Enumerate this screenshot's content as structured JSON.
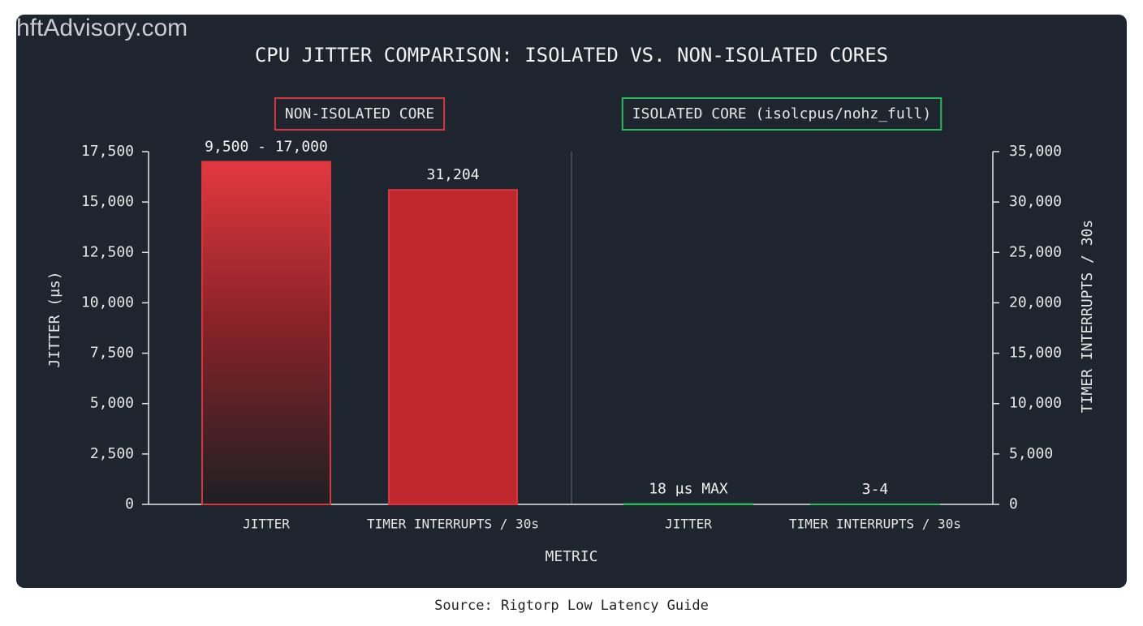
{
  "chart_data": {
    "type": "bar",
    "watermark": "hftAdvisory.com",
    "title": "CPU JITTER COMPARISON: ISOLATED VS. NON-ISOLATED CORES",
    "x_label": "METRIC",
    "y_label": "JITTER (µs)",
    "y2_label": "TIMER INTERRUPTS / 30s",
    "source": "Source: Rigtorp Low Latency Guide",
    "ylim": [
      0,
      17500
    ],
    "yticks": [
      0,
      {
        "value": 2500,
        "label": "2,500"
      },
      {
        "value": 5000,
        "label": "5,000"
      },
      {
        "value": 7500,
        "label": "7,500"
      },
      {
        "value": 10000,
        "label": "10,000"
      },
      {
        "value": 12500,
        "label": "12,500"
      },
      {
        "value": 15000,
        "label": "15,000"
      },
      {
        "value": 17500,
        "label": "17,500"
      }
    ],
    "y2lim": [
      0,
      35000
    ],
    "y2ticks": [
      0,
      {
        "value": 5000,
        "label": "5,000"
      },
      {
        "value": 10000,
        "label": "10,000"
      },
      {
        "value": 15000,
        "label": "15,000"
      },
      {
        "value": 20000,
        "label": "20,000"
      },
      {
        "value": 25000,
        "label": "25,000"
      },
      {
        "value": 30000,
        "label": "30,000"
      },
      {
        "value": 35000,
        "label": "35,000"
      }
    ],
    "groups": [
      {
        "label": "NON-ISOLATED CORE",
        "color": "#d9363e",
        "categories": [
          "JITTER",
          "TIMER INTERRUPTS / 30s"
        ],
        "axes": [
          "y",
          "y2"
        ],
        "values": [
          17000,
          31204
        ],
        "value_labels": [
          "9,500 - 17,000",
          "31,204"
        ]
      },
      {
        "label": "ISOLATED CORE (isolcpus/nohz_full)",
        "color": "#2eb85c",
        "categories": [
          "JITTER",
          "TIMER INTERRUPTS / 30s"
        ],
        "axes": [
          "y",
          "y2"
        ],
        "values": [
          18,
          4
        ],
        "value_labels": [
          "18 µs MAX",
          "3-4"
        ]
      }
    ]
  }
}
